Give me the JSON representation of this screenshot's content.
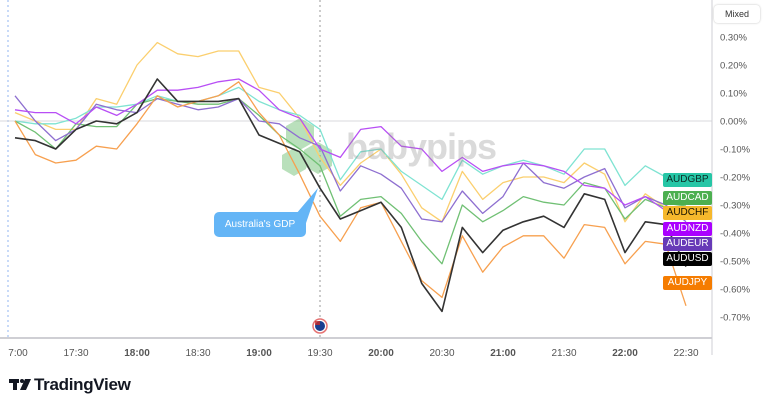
{
  "header": {
    "scale_mode_label": "Mixed"
  },
  "annotation": {
    "event_label": "Australia's GDP",
    "event_time": "19:30",
    "flag_icon": "australia-flag-icon"
  },
  "watermark": "babypips",
  "branding": {
    "logo_text": "TradingView"
  },
  "chart_data": {
    "type": "line",
    "xlabel": "",
    "ylabel": "",
    "ylim": [
      -0.75,
      0.35
    ],
    "grid": false,
    "legend": "right-edge-tags",
    "x_tick_labels": [
      "7:00",
      "17:30",
      "18:00",
      "18:30",
      "19:00",
      "19:30",
      "20:00",
      "20:30",
      "21:00",
      "21:30",
      "22:00",
      "22:30"
    ],
    "y_tick_labels": [
      "0.30%",
      "0.20%",
      "0.10%",
      "0.00%",
      "-0.10%",
      "-0.20%",
      "-0.30%",
      "-0.40%",
      "-0.50%",
      "-0.60%",
      "-0.70%"
    ],
    "y_ticks": [
      0.3,
      0.2,
      0.1,
      0,
      -0.1,
      -0.2,
      -0.3,
      -0.4,
      -0.5,
      -0.6,
      -0.7
    ],
    "x": [
      "17:00",
      "17:10",
      "17:20",
      "17:30",
      "17:40",
      "17:50",
      "18:00",
      "18:10",
      "18:20",
      "18:30",
      "18:40",
      "18:50",
      "19:00",
      "19:10",
      "19:20",
      "19:30",
      "19:40",
      "19:50",
      "20:00",
      "20:10",
      "20:20",
      "20:30",
      "20:40",
      "20:50",
      "21:00",
      "21:10",
      "21:20",
      "21:30",
      "21:40",
      "21:50",
      "22:00",
      "22:10",
      "22:20",
      "22:30"
    ],
    "series": [
      {
        "name": "AUDGBP",
        "color": "#26c6a6",
        "line": "#7fe3d2",
        "text": "#0b2b25",
        "values": [
          0,
          -0.01,
          -0.01,
          0.01,
          0.05,
          0.05,
          0.06,
          0.09,
          0.07,
          0.07,
          0.09,
          0.12,
          0.07,
          0.04,
          0.02,
          -0.03,
          -0.21,
          -0.11,
          -0.1,
          -0.18,
          -0.23,
          -0.28,
          -0.14,
          -0.19,
          -0.16,
          -0.14,
          -0.16,
          -0.19,
          -0.1,
          -0.1,
          -0.23,
          -0.16,
          -0.2,
          -0.21
        ]
      },
      {
        "name": "AUDCAD",
        "color": "#4caf50",
        "line": "#70c074",
        "text": "#ffffff",
        "values": [
          0,
          -0.04,
          -0.1,
          -0.01,
          -0.02,
          -0.02,
          0.06,
          0.08,
          0.07,
          0.06,
          0.06,
          0.08,
          0.02,
          -0.05,
          -0.1,
          -0.16,
          -0.34,
          -0.28,
          -0.27,
          -0.33,
          -0.43,
          -0.51,
          -0.3,
          -0.36,
          -0.32,
          -0.27,
          -0.29,
          -0.3,
          -0.22,
          -0.24,
          -0.35,
          -0.28,
          -0.31,
          -0.3
        ]
      },
      {
        "name": "AUDCHF",
        "color": "#f6b82c",
        "line": "#fbcf6e",
        "text": "#1a1400",
        "values": [
          0.03,
          0,
          -0.03,
          -0.03,
          0.08,
          0.06,
          0.2,
          0.28,
          0.24,
          0.23,
          0.25,
          0.25,
          0.12,
          0.1,
          0.01,
          -0.13,
          -0.23,
          -0.15,
          -0.1,
          -0.19,
          -0.31,
          -0.36,
          -0.18,
          -0.28,
          -0.22,
          -0.2,
          -0.2,
          -0.22,
          -0.15,
          -0.19,
          -0.36,
          -0.26,
          -0.31,
          -0.33
        ]
      },
      {
        "name": "AUDNZD",
        "color": "#aa00ff",
        "line": "#b84ef5",
        "text": "#ffffff",
        "values": [
          0.04,
          0.03,
          0.03,
          -0.01,
          0.05,
          0.02,
          0.06,
          0.11,
          0.11,
          0.12,
          0.14,
          0.15,
          0.11,
          0.04,
          0.01,
          -0.1,
          -0.13,
          -0.03,
          -0.02,
          -0.09,
          -0.1,
          -0.18,
          -0.13,
          -0.18,
          -0.16,
          -0.15,
          -0.16,
          -0.18,
          -0.23,
          -0.24,
          -0.3,
          -0.27,
          -0.32,
          -0.34
        ]
      },
      {
        "name": "AUDEUR",
        "color": "#673ab7",
        "line": "#8e6fd0",
        "text": "#ffffff",
        "values": [
          0.09,
          0,
          -0.07,
          -0.03,
          0.06,
          0.04,
          0.03,
          0.08,
          0.06,
          0.04,
          0.05,
          0.08,
          0,
          -0.01,
          -0.06,
          -0.09,
          -0.25,
          -0.16,
          -0.19,
          -0.24,
          -0.35,
          -0.36,
          -0.25,
          -0.33,
          -0.27,
          -0.15,
          -0.22,
          -0.24,
          -0.2,
          -0.17,
          -0.31,
          -0.27,
          -0.3,
          -0.36
        ]
      },
      {
        "name": "AUDUSD",
        "color": "#000000",
        "line": "#333333",
        "text": "#ffffff",
        "values": [
          -0.06,
          -0.07,
          -0.1,
          -0.03,
          0,
          -0.01,
          0.03,
          0.15,
          0.07,
          0.07,
          0.07,
          0.08,
          -0.05,
          -0.08,
          -0.11,
          -0.24,
          -0.35,
          -0.32,
          -0.29,
          -0.38,
          -0.58,
          -0.68,
          -0.38,
          -0.47,
          -0.39,
          -0.36,
          -0.34,
          -0.38,
          -0.26,
          -0.28,
          -0.47,
          -0.36,
          -0.37,
          -0.52
        ]
      },
      {
        "name": "AUDJPY",
        "color": "#f57c00",
        "line": "#f7a04f",
        "text": "#ffffff",
        "values": [
          0,
          -0.12,
          -0.15,
          -0.14,
          -0.09,
          -0.1,
          -0.01,
          0.09,
          0.05,
          0.07,
          0.09,
          0.14,
          0.03,
          -0.05,
          -0.19,
          -0.34,
          -0.43,
          -0.31,
          -0.29,
          -0.43,
          -0.57,
          -0.63,
          -0.41,
          -0.54,
          -0.45,
          -0.41,
          -0.41,
          -0.49,
          -0.37,
          -0.38,
          -0.51,
          -0.43,
          -0.44,
          -0.66
        ]
      }
    ]
  }
}
